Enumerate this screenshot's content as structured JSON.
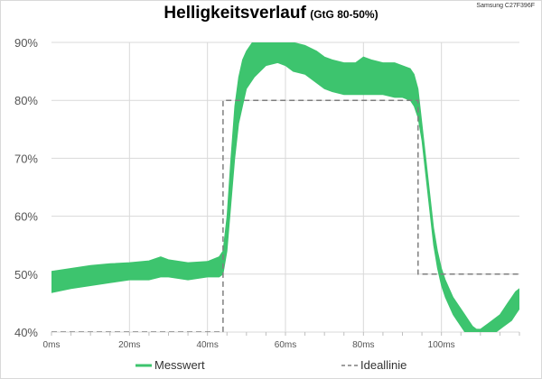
{
  "header": {
    "title": "Helligkeitsverlauf",
    "subtitle": "(GtG 80-50%)",
    "device": "Samsung C27F396F"
  },
  "colors": {
    "measured": "#3dc46e",
    "ideal": "#7f7f7f",
    "grid": "#d9d9d9"
  },
  "chart_data": {
    "type": "line",
    "title": "Helligkeitsverlauf",
    "subtitle": "(GtG 80-50%)",
    "xlabel": "",
    "ylabel": "",
    "xlim": [
      0,
      120
    ],
    "ylim": [
      40,
      90
    ],
    "x_ticks": [
      "0ms",
      "20ms",
      "40ms",
      "60ms",
      "80ms",
      "100ms"
    ],
    "x_tick_values": [
      0,
      20,
      40,
      60,
      80,
      100
    ],
    "y_ticks": [
      "40%",
      "50%",
      "60%",
      "70%",
      "80%",
      "90%"
    ],
    "y_tick_values": [
      40,
      50,
      60,
      70,
      80,
      90
    ],
    "grid": true,
    "legend_position": "bottom",
    "series": [
      {
        "name": "Messwert",
        "style": "band",
        "x": [
          0,
          5,
          10,
          15,
          20,
          25,
          28,
          30,
          35,
          40,
          43,
          44,
          45,
          46,
          47,
          48,
          49,
          50,
          52,
          55,
          58,
          60,
          62,
          65,
          68,
          70,
          72,
          75,
          78,
          80,
          82,
          85,
          88,
          90,
          92,
          93,
          94,
          95,
          96,
          97,
          98,
          99,
          100,
          101,
          102,
          103,
          104,
          105,
          106,
          107,
          108,
          109,
          110,
          111,
          112,
          113,
          114,
          115,
          116,
          117,
          118,
          119,
          120
        ],
        "low": [
          46.8,
          47.5,
          48.0,
          48.5,
          49.0,
          49.0,
          49.5,
          49.5,
          49.0,
          49.5,
          49.5,
          50.0,
          54.0,
          62.0,
          70.0,
          76.0,
          79.0,
          82.0,
          84.0,
          86.0,
          86.5,
          86.0,
          85.0,
          84.5,
          83.0,
          82.0,
          81.5,
          81.0,
          81.0,
          81.0,
          81.0,
          81.0,
          80.5,
          80.5,
          80.0,
          79.0,
          77.0,
          73.0,
          67.0,
          61.0,
          55.0,
          51.0,
          48.0,
          46.0,
          44.5,
          43.0,
          42.0,
          41.0,
          40.0,
          39.0,
          38.5,
          38.0,
          38.0,
          38.5,
          39.0,
          39.5,
          40.0,
          40.5,
          41.0,
          41.5,
          42.0,
          43.0,
          44.0
        ],
        "high": [
          50.5,
          51.0,
          51.5,
          51.8,
          52.0,
          52.3,
          53.0,
          52.5,
          52.0,
          52.2,
          53.0,
          54.0,
          60.0,
          70.0,
          79.0,
          84.0,
          87.0,
          88.5,
          90.5,
          91.0,
          91.0,
          90.5,
          90.0,
          89.5,
          88.5,
          87.5,
          87.0,
          86.5,
          86.5,
          87.5,
          87.0,
          86.5,
          86.5,
          86.0,
          85.5,
          84.5,
          82.0,
          76.0,
          70.0,
          64.0,
          58.0,
          54.0,
          51.0,
          49.0,
          47.5,
          46.0,
          45.0,
          44.0,
          43.0,
          42.0,
          41.0,
          40.5,
          40.5,
          41.0,
          41.5,
          42.0,
          42.5,
          43.0,
          44.0,
          45.0,
          46.0,
          47.0,
          47.5
        ]
      },
      {
        "name": "Ideallinie",
        "style": "dashed",
        "x": [
          0,
          44,
          44,
          94,
          94,
          120
        ],
        "y": [
          40,
          40,
          80,
          80,
          50,
          50
        ]
      }
    ]
  }
}
